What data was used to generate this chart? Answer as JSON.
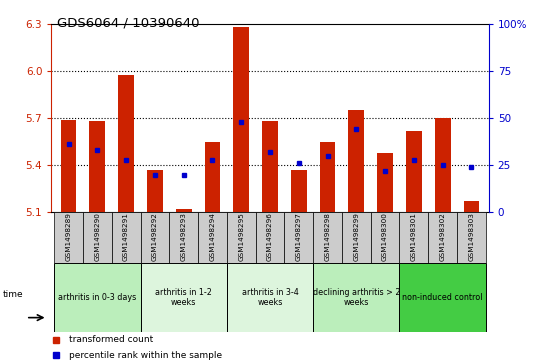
{
  "title": "GDS6064 / 10390640",
  "samples": [
    "GSM1498289",
    "GSM1498290",
    "GSM1498291",
    "GSM1498292",
    "GSM1498293",
    "GSM1498294",
    "GSM1498295",
    "GSM1498296",
    "GSM1498297",
    "GSM1498298",
    "GSM1498299",
    "GSM1498300",
    "GSM1498301",
    "GSM1498302",
    "GSM1498303"
  ],
  "red_values": [
    5.69,
    5.68,
    5.975,
    5.37,
    5.12,
    5.55,
    6.28,
    5.68,
    5.37,
    5.55,
    5.75,
    5.48,
    5.62,
    5.7,
    5.17
  ],
  "blue_values": [
    36,
    33,
    28,
    20,
    20,
    28,
    48,
    32,
    26,
    30,
    44,
    22,
    28,
    25,
    24
  ],
  "ymin": 5.1,
  "ymax": 6.3,
  "yticks": [
    5.1,
    5.4,
    5.7,
    6.0,
    6.3
  ],
  "y2min": 0,
  "y2max": 100,
  "y2ticks": [
    0,
    25,
    50,
    75,
    100
  ],
  "groups": [
    {
      "label": "arthritis in 0-3 days",
      "start": 0,
      "end": 3,
      "color": "#bbeebb"
    },
    {
      "label": "arthritis in 1-2\nweeks",
      "start": 3,
      "end": 6,
      "color": "#ddf5dd"
    },
    {
      "label": "arthritis in 3-4\nweeks",
      "start": 6,
      "end": 9,
      "color": "#ddf5dd"
    },
    {
      "label": "declining arthritis > 2\nweeks",
      "start": 9,
      "end": 12,
      "color": "#bbeebb"
    },
    {
      "label": "non-induced control",
      "start": 12,
      "end": 15,
      "color": "#44cc44"
    }
  ],
  "bar_color": "#cc2200",
  "dot_color": "#0000cc",
  "axis_color_left": "#cc2200",
  "axis_color_right": "#0000cc",
  "bg_plot": "#ffffff"
}
